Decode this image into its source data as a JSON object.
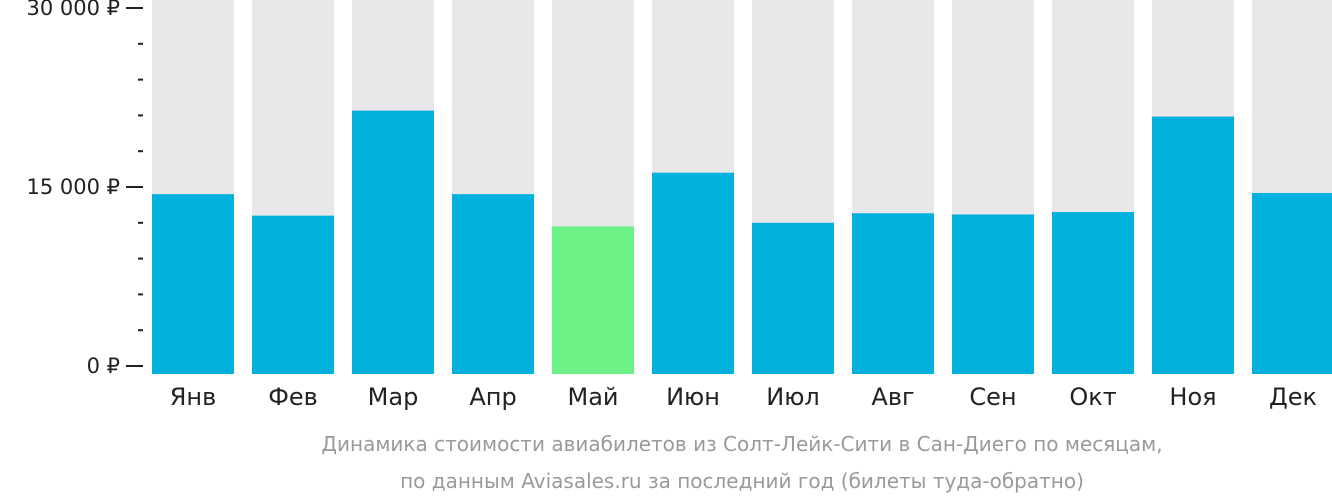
{
  "chart_data": {
    "type": "bar",
    "categories": [
      "Янв",
      "Фев",
      "Мар",
      "Апр",
      "Май",
      "Июн",
      "Июл",
      "Авг",
      "Сен",
      "Окт",
      "Ноя",
      "Дек"
    ],
    "values": [
      14400,
      12600,
      21400,
      14400,
      11700,
      16200,
      12000,
      12800,
      12700,
      12900,
      20900,
      14500
    ],
    "ylim": [
      0,
      30000
    ],
    "y_tick_labels": [
      "0 ₽",
      "15 000 ₽",
      "30 000 ₽"
    ],
    "y_tick_values": [
      0,
      15000,
      30000
    ],
    "minor_ticks_per_interval": 5,
    "highlight_index": 4,
    "grid": false,
    "colors": {
      "bar": "#00b0dd",
      "highlight": "#6cf186",
      "background_bar": "#e8e8ea",
      "axis": "#222222"
    }
  },
  "caption": {
    "line1": "Динамика стоимости авиабилетов из Солт-Лейк-Сити в Сан-Диего по месяцам,",
    "line2": "по данным Aviasales.ru за последний год (билеты туда-обратно)"
  }
}
